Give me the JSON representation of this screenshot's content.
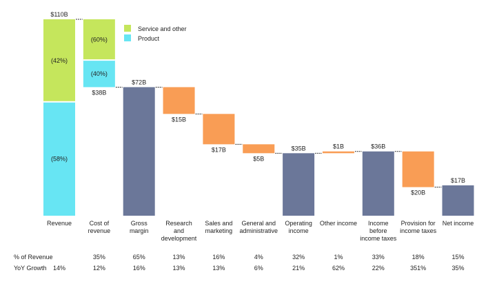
{
  "chart_data": {
    "type": "waterfall",
    "unit": "$B",
    "ylim": [
      0,
      110
    ],
    "grid": false,
    "legend_placement": "top-left",
    "legend": [
      {
        "name": "Service and other",
        "color": "#c5e65c"
      },
      {
        "name": "Product",
        "color": "#67e5f3"
      }
    ],
    "colors": {
      "total": "#6b7799",
      "decrease": "#f99d55",
      "increase": "#f99d55",
      "service": "#c5e65c",
      "product": "#67e5f3"
    },
    "categories": [
      "Revenue",
      "Cost of revenue",
      "Gross margin",
      "Research and development",
      "Sales and marketing",
      "General and administrative",
      "Operating income",
      "Other income",
      "Income before income taxes",
      "Provision for income taxes",
      "Net income"
    ],
    "category_lines": [
      [
        "Revenue"
      ],
      [
        "Cost of",
        "revenue"
      ],
      [
        "Gross",
        "margin"
      ],
      [
        "Research",
        "and",
        "development"
      ],
      [
        "Sales and",
        "marketing"
      ],
      [
        "General and",
        "administrative"
      ],
      [
        "Operating",
        "income"
      ],
      [
        "Other income"
      ],
      [
        "Income",
        "before",
        "income taxes"
      ],
      [
        "Provision for",
        "income taxes"
      ],
      [
        "Net income"
      ]
    ],
    "bars": [
      {
        "kind": "stacked-total",
        "value": 110,
        "label": "$110B",
        "segments": [
          {
            "name": "Product",
            "share": 58,
            "label": "(58%)"
          },
          {
            "name": "Service and other",
            "share": 42,
            "label": "(42%)"
          }
        ]
      },
      {
        "kind": "stacked-decrease",
        "value": -38,
        "label": "$38B",
        "segments": [
          {
            "name": "Product",
            "share": 40,
            "label": "(40%)"
          },
          {
            "name": "Service and other",
            "share": 60,
            "label": "(60%)"
          }
        ]
      },
      {
        "kind": "total",
        "value": 72,
        "label": "$72B"
      },
      {
        "kind": "decrease",
        "value": -15,
        "label": "$15B"
      },
      {
        "kind": "decrease",
        "value": -17,
        "label": "$17B"
      },
      {
        "kind": "decrease",
        "value": -5,
        "label": "$5B"
      },
      {
        "kind": "total",
        "value": 35,
        "label": "$35B"
      },
      {
        "kind": "increase",
        "value": 1,
        "label": "$1B"
      },
      {
        "kind": "total",
        "value": 36,
        "label": "$36B"
      },
      {
        "kind": "decrease",
        "value": -20,
        "label": "$20B"
      },
      {
        "kind": "total",
        "value": 17,
        "label": "$17B"
      }
    ],
    "table": {
      "rows": [
        {
          "label": "% of Revenue",
          "values": [
            "",
            "35%",
            "65%",
            "13%",
            "16%",
            "4%",
            "32%",
            "1%",
            "33%",
            "18%",
            "15%"
          ]
        },
        {
          "label": "YoY Growth",
          "values": [
            "14%",
            "12%",
            "16%",
            "13%",
            "13%",
            "6%",
            "21%",
            "62%",
            "22%",
            "351%",
            "35%"
          ]
        }
      ]
    }
  }
}
